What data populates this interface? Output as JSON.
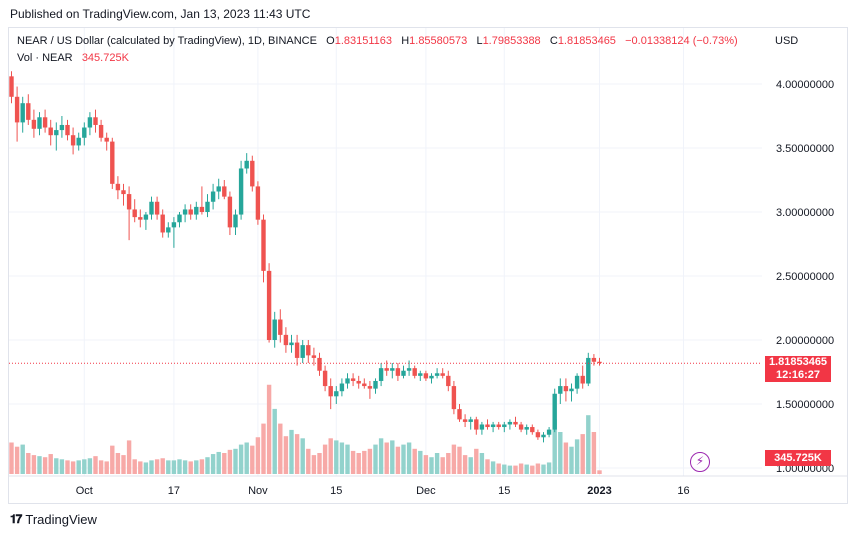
{
  "header": {
    "published": "Published on TradingView.com, Jan 13, 2023 11:43 UTC"
  },
  "legend": {
    "symbol": "NEAR / US Dollar (calculated by TradingView), 1D, BINANCE",
    "o_label": "O",
    "o_value": "1.83151163",
    "h_label": "H",
    "h_value": "1.85580573",
    "l_label": "L",
    "l_value": "1.79853388",
    "c_label": "C",
    "c_value": "1.81853465",
    "change": "−0.01338124 (−0.73%)",
    "vol_label": "Vol · NEAR",
    "vol_value": "345.725K"
  },
  "axis": {
    "currency": "USD"
  },
  "tags": {
    "last_price": "1.81853465",
    "countdown": "12:16:27",
    "volume": "345.725K"
  },
  "footer": {
    "logo_mark": "𝟏𝟕",
    "logo_text": "TradingView"
  },
  "colors": {
    "up": "#26a69a",
    "down": "#ef5350",
    "up_volume": "#92d2cc",
    "down_volume": "#f7a9a7",
    "grid": "#f0f3fa",
    "last_line": "#f23645"
  },
  "chart_data": {
    "type": "candlestick",
    "symbol": "NEAR / US Dollar",
    "interval": "1D",
    "exchange": "BINANCE",
    "y_range": [
      0.9,
      4.3
    ],
    "y_ticks": [
      {
        "value": 4.0,
        "label": "4.00000000"
      },
      {
        "value": 3.5,
        "label": "3.50000000"
      },
      {
        "value": 3.0,
        "label": "3.00000000"
      },
      {
        "value": 2.5,
        "label": "2.50000000"
      },
      {
        "value": 2.0,
        "label": "2.00000000"
      },
      {
        "value": 1.5,
        "label": "1.50000000"
      },
      {
        "value": 1.0,
        "label": "1.00000000"
      }
    ],
    "x_ticks": [
      {
        "label": "Oct",
        "index": 13,
        "bold": false
      },
      {
        "label": "17",
        "index": 29,
        "bold": false
      },
      {
        "label": "Nov",
        "index": 44,
        "bold": false
      },
      {
        "label": "15",
        "index": 58,
        "bold": false
      },
      {
        "label": "Dec",
        "index": 74,
        "bold": false
      },
      {
        "label": "15",
        "index": 88,
        "bold": false
      },
      {
        "label": "2023",
        "index": 105,
        "bold": true
      },
      {
        "label": "16",
        "index": 120,
        "bold": false
      }
    ],
    "last_close": 1.81853465,
    "candles": [
      [
        4.06,
        4.1,
        3.85,
        3.9,
        0.3
      ],
      [
        3.9,
        3.98,
        3.55,
        3.7,
        0.26
      ],
      [
        3.7,
        3.9,
        3.62,
        3.85,
        0.28
      ],
      [
        3.85,
        3.92,
        3.68,
        3.72,
        0.2
      ],
      [
        3.72,
        3.8,
        3.58,
        3.65,
        0.18
      ],
      [
        3.65,
        3.78,
        3.6,
        3.74,
        0.17
      ],
      [
        3.74,
        3.8,
        3.62,
        3.66,
        0.16
      ],
      [
        3.66,
        3.72,
        3.52,
        3.6,
        0.19
      ],
      [
        3.6,
        3.7,
        3.48,
        3.64,
        0.15
      ],
      [
        3.64,
        3.75,
        3.58,
        3.68,
        0.14
      ],
      [
        3.68,
        3.72,
        3.56,
        3.6,
        0.13
      ],
      [
        3.6,
        3.66,
        3.45,
        3.52,
        0.12
      ],
      [
        3.52,
        3.62,
        3.48,
        3.58,
        0.13
      ],
      [
        3.58,
        3.7,
        3.52,
        3.66,
        0.14
      ],
      [
        3.66,
        3.78,
        3.6,
        3.74,
        0.15
      ],
      [
        3.74,
        3.8,
        3.62,
        3.68,
        0.17
      ],
      [
        3.68,
        3.72,
        3.55,
        3.58,
        0.13
      ],
      [
        3.58,
        3.62,
        3.48,
        3.55,
        0.12
      ],
      [
        3.55,
        3.58,
        3.18,
        3.22,
        0.27
      ],
      [
        3.22,
        3.28,
        3.1,
        3.17,
        0.2
      ],
      [
        3.17,
        3.22,
        3.05,
        3.14,
        0.18
      ],
      [
        3.14,
        3.2,
        2.78,
        3.02,
        0.32
      ],
      [
        3.02,
        3.1,
        2.92,
        2.96,
        0.14
      ],
      [
        2.96,
        3.02,
        2.88,
        2.94,
        0.12
      ],
      [
        2.94,
        3.0,
        2.86,
        2.98,
        0.11
      ],
      [
        2.98,
        3.12,
        2.94,
        3.08,
        0.13
      ],
      [
        3.08,
        3.12,
        2.94,
        2.98,
        0.14
      ],
      [
        2.98,
        3.02,
        2.8,
        2.84,
        0.15
      ],
      [
        2.84,
        2.92,
        2.8,
        2.88,
        0.13
      ],
      [
        2.88,
        2.96,
        2.72,
        2.92,
        0.13
      ],
      [
        2.92,
        3.0,
        2.88,
        2.98,
        0.14
      ],
      [
        2.98,
        3.06,
        2.92,
        3.02,
        0.13
      ],
      [
        3.02,
        3.06,
        2.94,
        2.98,
        0.12
      ],
      [
        2.98,
        3.08,
        2.94,
        3.04,
        0.13
      ],
      [
        3.04,
        3.2,
        2.98,
        3.0,
        0.14
      ],
      [
        3.0,
        3.14,
        2.96,
        3.08,
        0.16
      ],
      [
        3.08,
        3.22,
        3.02,
        3.16,
        0.19
      ],
      [
        3.16,
        3.26,
        3.1,
        3.2,
        0.21
      ],
      [
        3.2,
        3.25,
        3.1,
        3.12,
        0.2
      ],
      [
        3.12,
        3.16,
        2.82,
        2.88,
        0.23
      ],
      [
        2.88,
        3.02,
        2.82,
        2.98,
        0.24
      ],
      [
        2.98,
        3.4,
        2.94,
        3.34,
        0.28
      ],
      [
        3.34,
        3.46,
        3.3,
        3.4,
        0.3
      ],
      [
        3.4,
        3.44,
        3.16,
        3.2,
        0.27
      ],
      [
        3.2,
        3.24,
        2.9,
        2.94,
        0.35
      ],
      [
        2.94,
        2.98,
        2.45,
        2.54,
        0.48
      ],
      [
        2.54,
        2.6,
        1.98,
        2.0,
        0.85
      ],
      [
        2.0,
        2.22,
        1.94,
        2.16,
        0.62
      ],
      [
        2.16,
        2.24,
        1.98,
        2.04,
        0.48
      ],
      [
        2.04,
        2.1,
        1.9,
        1.96,
        0.36
      ],
      [
        1.96,
        2.04,
        1.9,
        1.98,
        0.42
      ],
      [
        1.98,
        2.04,
        1.8,
        1.86,
        0.38
      ],
      [
        1.86,
        2.0,
        1.82,
        1.96,
        0.34
      ],
      [
        1.96,
        2.0,
        1.82,
        1.88,
        0.24
      ],
      [
        1.88,
        1.94,
        1.8,
        1.86,
        0.18
      ],
      [
        1.86,
        1.9,
        1.72,
        1.76,
        0.2
      ],
      [
        1.76,
        1.8,
        1.6,
        1.64,
        0.28
      ],
      [
        1.64,
        1.7,
        1.46,
        1.56,
        0.34
      ],
      [
        1.56,
        1.64,
        1.5,
        1.6,
        0.32
      ],
      [
        1.6,
        1.7,
        1.56,
        1.66,
        0.3
      ],
      [
        1.66,
        1.74,
        1.62,
        1.7,
        0.28
      ],
      [
        1.7,
        1.74,
        1.64,
        1.68,
        0.22
      ],
      [
        1.68,
        1.72,
        1.62,
        1.66,
        0.2
      ],
      [
        1.66,
        1.7,
        1.62,
        1.64,
        0.22
      ],
      [
        1.64,
        1.68,
        1.54,
        1.62,
        0.24
      ],
      [
        1.62,
        1.7,
        1.58,
        1.68,
        0.28
      ],
      [
        1.68,
        1.82,
        1.64,
        1.78,
        0.34
      ],
      [
        1.78,
        1.84,
        1.72,
        1.76,
        0.3
      ],
      [
        1.76,
        1.82,
        1.7,
        1.78,
        0.32
      ],
      [
        1.78,
        1.82,
        1.68,
        1.72,
        0.26
      ],
      [
        1.72,
        1.8,
        1.7,
        1.76,
        0.28
      ],
      [
        1.76,
        1.84,
        1.72,
        1.78,
        0.3
      ],
      [
        1.78,
        1.8,
        1.7,
        1.72,
        0.24
      ],
      [
        1.72,
        1.76,
        1.68,
        1.74,
        0.22
      ],
      [
        1.74,
        1.76,
        1.68,
        1.7,
        0.18
      ],
      [
        1.7,
        1.74,
        1.66,
        1.72,
        0.16
      ],
      [
        1.72,
        1.78,
        1.7,
        1.74,
        0.2
      ],
      [
        1.74,
        1.78,
        1.7,
        1.72,
        0.16
      ],
      [
        1.72,
        1.76,
        1.6,
        1.64,
        0.2
      ],
      [
        1.64,
        1.68,
        1.42,
        1.46,
        0.28
      ],
      [
        1.46,
        1.5,
        1.36,
        1.38,
        0.26
      ],
      [
        1.38,
        1.42,
        1.32,
        1.36,
        0.18
      ],
      [
        1.36,
        1.4,
        1.3,
        1.38,
        0.16
      ],
      [
        1.38,
        1.4,
        1.26,
        1.3,
        0.24
      ],
      [
        1.3,
        1.36,
        1.26,
        1.34,
        0.2
      ],
      [
        1.34,
        1.38,
        1.3,
        1.32,
        0.14
      ],
      [
        1.32,
        1.36,
        1.28,
        1.34,
        0.12
      ],
      [
        1.34,
        1.36,
        1.3,
        1.32,
        0.1
      ],
      [
        1.32,
        1.36,
        1.28,
        1.34,
        0.09
      ],
      [
        1.34,
        1.38,
        1.3,
        1.36,
        0.08
      ],
      [
        1.36,
        1.4,
        1.32,
        1.34,
        0.08
      ],
      [
        1.34,
        1.36,
        1.28,
        1.3,
        0.1
      ],
      [
        1.3,
        1.34,
        1.26,
        1.32,
        0.09
      ],
      [
        1.32,
        1.34,
        1.26,
        1.28,
        0.08
      ],
      [
        1.28,
        1.3,
        1.22,
        1.24,
        0.1
      ],
      [
        1.24,
        1.28,
        1.2,
        1.26,
        0.09
      ],
      [
        1.26,
        1.32,
        1.24,
        1.3,
        0.11
      ],
      [
        1.3,
        1.62,
        1.28,
        1.58,
        0.52
      ],
      [
        1.58,
        1.7,
        1.5,
        1.64,
        0.4
      ],
      [
        1.64,
        1.7,
        1.52,
        1.6,
        0.3
      ],
      [
        1.6,
        1.66,
        1.52,
        1.62,
        0.26
      ],
      [
        1.62,
        1.74,
        1.58,
        1.72,
        0.33
      ],
      [
        1.72,
        1.8,
        1.62,
        1.66,
        0.38
      ],
      [
        1.66,
        1.9,
        1.64,
        1.86,
        0.56
      ],
      [
        1.86,
        1.89,
        1.8,
        1.83,
        0.4
      ],
      [
        1.83,
        1.86,
        1.8,
        1.82,
        0.035
      ]
    ]
  }
}
